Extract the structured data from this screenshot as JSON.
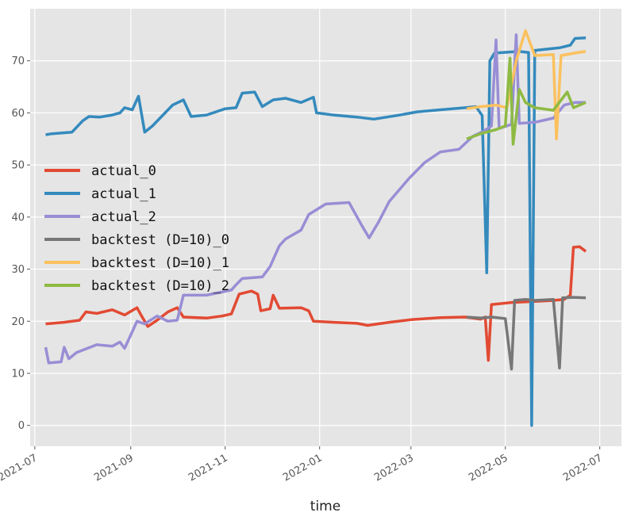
{
  "chart_data": {
    "type": "line",
    "xlabel": "time",
    "ylabel": "",
    "x_type": "date",
    "xlim": [
      "2021-06-28",
      "2022-07-15"
    ],
    "ylim": [
      -4,
      80
    ],
    "grid": true,
    "legend_position": "center-left",
    "x_ticks": [
      "2021-07",
      "2021-09",
      "2021-11",
      "2022-01",
      "2022-03",
      "2022-05",
      "2022-07"
    ],
    "y_ticks": [
      0,
      10,
      20,
      30,
      40,
      50,
      60,
      70
    ],
    "series": [
      {
        "name": "actual_0",
        "color": "#e24a33",
        "points": [
          [
            "2021-07-08",
            19.5
          ],
          [
            "2021-07-20",
            19.8
          ],
          [
            "2021-07-30",
            20.2
          ],
          [
            "2021-08-03",
            21.8
          ],
          [
            "2021-08-10",
            21.5
          ],
          [
            "2021-08-20",
            22.2
          ],
          [
            "2021-08-28",
            21.2
          ],
          [
            "2021-09-05",
            22.6
          ],
          [
            "2021-09-08",
            21.0
          ],
          [
            "2021-09-12",
            19.0
          ],
          [
            "2021-09-18",
            20.2
          ],
          [
            "2021-09-25",
            21.8
          ],
          [
            "2021-10-01",
            22.6
          ],
          [
            "2021-10-05",
            20.8
          ],
          [
            "2021-10-20",
            20.6
          ],
          [
            "2021-10-30",
            21.0
          ],
          [
            "2021-11-05",
            21.4
          ],
          [
            "2021-11-10",
            25.2
          ],
          [
            "2021-11-18",
            25.8
          ],
          [
            "2021-11-22",
            25.2
          ],
          [
            "2021-11-24",
            22.0
          ],
          [
            "2021-11-30",
            22.4
          ],
          [
            "2021-12-02",
            25.0
          ],
          [
            "2021-12-06",
            22.5
          ],
          [
            "2021-12-20",
            22.6
          ],
          [
            "2021-12-25",
            22.0
          ],
          [
            "2021-12-28",
            20.0
          ],
          [
            "2022-01-10",
            19.8
          ],
          [
            "2022-01-25",
            19.6
          ],
          [
            "2022-02-01",
            19.2
          ],
          [
            "2022-02-15",
            19.8
          ],
          [
            "2022-03-01",
            20.3
          ],
          [
            "2022-03-20",
            20.7
          ],
          [
            "2022-04-05",
            20.8
          ],
          [
            "2022-04-15",
            20.4
          ],
          [
            "2022-04-18",
            20.8
          ],
          [
            "2022-04-20",
            12.5
          ],
          [
            "2022-04-22",
            23.2
          ],
          [
            "2022-05-05",
            23.6
          ],
          [
            "2022-05-20",
            23.8
          ],
          [
            "2022-06-01",
            24.0
          ],
          [
            "2022-06-08",
            24.2
          ],
          [
            "2022-06-12",
            25.0
          ],
          [
            "2022-06-14",
            34.2
          ],
          [
            "2022-06-18",
            34.3
          ],
          [
            "2022-06-22",
            33.4
          ]
        ]
      },
      {
        "name": "actual_1",
        "color": "#348abd",
        "points": [
          [
            "2021-07-08",
            55.8
          ],
          [
            "2021-07-12",
            56.0
          ],
          [
            "2021-07-25",
            56.3
          ],
          [
            "2021-08-01",
            58.5
          ],
          [
            "2021-08-05",
            59.3
          ],
          [
            "2021-08-12",
            59.2
          ],
          [
            "2021-08-20",
            59.6
          ],
          [
            "2021-08-25",
            60.0
          ],
          [
            "2021-08-28",
            61.0
          ],
          [
            "2021-09-02",
            60.6
          ],
          [
            "2021-09-06",
            63.2
          ],
          [
            "2021-09-10",
            56.3
          ],
          [
            "2021-09-15",
            57.5
          ],
          [
            "2021-09-28",
            61.5
          ],
          [
            "2021-10-05",
            62.5
          ],
          [
            "2021-10-10",
            59.3
          ],
          [
            "2021-10-20",
            59.6
          ],
          [
            "2021-11-01",
            60.8
          ],
          [
            "2021-11-08",
            61.0
          ],
          [
            "2021-11-12",
            63.8
          ],
          [
            "2021-11-20",
            64.0
          ],
          [
            "2021-11-25",
            61.2
          ],
          [
            "2021-12-02",
            62.5
          ],
          [
            "2021-12-10",
            62.8
          ],
          [
            "2021-12-20",
            62.0
          ],
          [
            "2021-12-28",
            63.0
          ],
          [
            "2021-12-30",
            60.0
          ],
          [
            "2022-01-10",
            59.6
          ],
          [
            "2022-01-25",
            59.2
          ],
          [
            "2022-02-05",
            58.8
          ],
          [
            "2022-02-20",
            59.5
          ],
          [
            "2022-03-05",
            60.2
          ],
          [
            "2022-03-20",
            60.6
          ],
          [
            "2022-04-05",
            61.0
          ],
          [
            "2022-04-12",
            61.2
          ],
          [
            "2022-04-16",
            59.5
          ],
          [
            "2022-04-19",
            29.3
          ],
          [
            "2022-04-21",
            70.0
          ],
          [
            "2022-04-24",
            71.5
          ],
          [
            "2022-05-10",
            71.8
          ],
          [
            "2022-05-16",
            71.6
          ],
          [
            "2022-05-18",
            0.0
          ],
          [
            "2022-05-20",
            72.0
          ],
          [
            "2022-06-05",
            72.5
          ],
          [
            "2022-06-12",
            73.0
          ],
          [
            "2022-06-15",
            74.3
          ],
          [
            "2022-06-22",
            74.4
          ]
        ]
      },
      {
        "name": "actual_2",
        "color": "#988ed5",
        "points": [
          [
            "2021-07-08",
            15.0
          ],
          [
            "2021-07-10",
            12.0
          ],
          [
            "2021-07-18",
            12.2
          ],
          [
            "2021-07-20",
            15.0
          ],
          [
            "2021-07-23",
            12.8
          ],
          [
            "2021-07-28",
            14.0
          ],
          [
            "2021-08-10",
            15.5
          ],
          [
            "2021-08-20",
            15.2
          ],
          [
            "2021-08-25",
            16.0
          ],
          [
            "2021-08-28",
            14.8
          ],
          [
            "2021-09-02",
            18.0
          ],
          [
            "2021-09-05",
            20.0
          ],
          [
            "2021-09-10",
            19.5
          ],
          [
            "2021-09-18",
            21.0
          ],
          [
            "2021-09-25",
            20.0
          ],
          [
            "2021-10-01",
            20.2
          ],
          [
            "2021-10-05",
            25.0
          ],
          [
            "2021-10-20",
            25.0
          ],
          [
            "2021-11-05",
            26.0
          ],
          [
            "2021-11-08",
            27.0
          ],
          [
            "2021-11-12",
            28.2
          ],
          [
            "2021-11-25",
            28.5
          ],
          [
            "2021-11-30",
            30.5
          ],
          [
            "2021-12-06",
            34.5
          ],
          [
            "2021-12-10",
            35.8
          ],
          [
            "2021-12-20",
            37.5
          ],
          [
            "2021-12-25",
            40.5
          ],
          [
            "2022-01-05",
            42.5
          ],
          [
            "2022-01-20",
            42.8
          ],
          [
            "2022-01-28",
            38.5
          ],
          [
            "2022-02-02",
            36.0
          ],
          [
            "2022-02-08",
            39.0
          ],
          [
            "2022-02-15",
            43.0
          ],
          [
            "2022-02-28",
            47.5
          ],
          [
            "2022-03-10",
            50.5
          ],
          [
            "2022-03-20",
            52.5
          ],
          [
            "2022-04-01",
            53.0
          ],
          [
            "2022-04-10",
            55.5
          ],
          [
            "2022-04-17",
            56.5
          ],
          [
            "2022-04-22",
            57.5
          ],
          [
            "2022-04-25",
            74.0
          ],
          [
            "2022-04-27",
            57.0
          ],
          [
            "2022-05-05",
            57.8
          ],
          [
            "2022-05-08",
            75.0
          ],
          [
            "2022-05-10",
            58.0
          ],
          [
            "2022-05-20",
            58.2
          ],
          [
            "2022-06-01",
            59.0
          ],
          [
            "2022-06-08",
            61.5
          ],
          [
            "2022-06-15",
            62.0
          ],
          [
            "2022-06-22",
            62.0
          ]
        ]
      },
      {
        "name": "backtest (D=10)_0",
        "color": "#777777",
        "points": [
          [
            "2022-04-06",
            20.8
          ],
          [
            "2022-04-15",
            20.6
          ],
          [
            "2022-04-22",
            20.8
          ],
          [
            "2022-05-01",
            20.5
          ],
          [
            "2022-05-05",
            10.8
          ],
          [
            "2022-05-07",
            24.0
          ],
          [
            "2022-05-14",
            24.2
          ],
          [
            "2022-05-20",
            24.0
          ],
          [
            "2022-06-01",
            24.2
          ],
          [
            "2022-06-05",
            11.0
          ],
          [
            "2022-06-07",
            24.5
          ],
          [
            "2022-06-14",
            24.6
          ],
          [
            "2022-06-22",
            24.5
          ]
        ]
      },
      {
        "name": "backtest (D=10)_1",
        "color": "#fbc15e",
        "points": [
          [
            "2022-04-06",
            60.8
          ],
          [
            "2022-04-15",
            61.2
          ],
          [
            "2022-04-25",
            61.5
          ],
          [
            "2022-05-02",
            61.0
          ],
          [
            "2022-05-08",
            70.0
          ],
          [
            "2022-05-14",
            75.8
          ],
          [
            "2022-05-20",
            71.0
          ],
          [
            "2022-06-01",
            71.2
          ],
          [
            "2022-06-03",
            55.0
          ],
          [
            "2022-06-06",
            71.0
          ],
          [
            "2022-06-15",
            71.5
          ],
          [
            "2022-06-22",
            71.8
          ]
        ]
      },
      {
        "name": "backtest (D=10)_2",
        "color": "#8eba42",
        "points": [
          [
            "2022-04-06",
            55.0
          ],
          [
            "2022-04-15",
            56.0
          ],
          [
            "2022-04-25",
            56.8
          ],
          [
            "2022-05-01",
            57.5
          ],
          [
            "2022-05-04",
            70.5
          ],
          [
            "2022-05-06",
            54.0
          ],
          [
            "2022-05-10",
            64.5
          ],
          [
            "2022-05-14",
            62.0
          ],
          [
            "2022-05-20",
            61.0
          ],
          [
            "2022-06-01",
            60.5
          ],
          [
            "2022-06-10",
            64.0
          ],
          [
            "2022-06-14",
            61.0
          ],
          [
            "2022-06-22",
            62.0
          ]
        ]
      }
    ]
  }
}
